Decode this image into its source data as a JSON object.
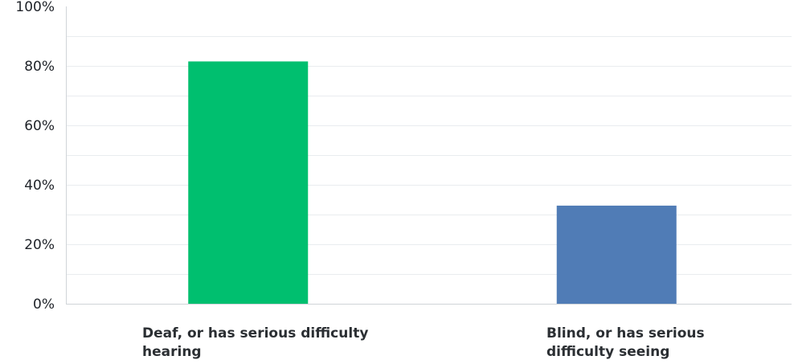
{
  "chart_data": {
    "type": "bar",
    "categories": [
      "Deaf, or has serious difficulty hearing",
      "Blind, or has serious difficulty seeing"
    ],
    "values": [
      81.5,
      33
    ],
    "ylim": [
      0,
      100
    ],
    "yticks": [
      "0%",
      "20%",
      "40%",
      "60%",
      "80%",
      "100%"
    ],
    "colors": [
      "#00bf6f",
      "#507cb6"
    ],
    "grid": true,
    "legend": "none"
  },
  "labels": {
    "cat0": "Deaf, or has serious difficulty hearing",
    "cat1": "Blind, or has serious difficulty seeing"
  }
}
